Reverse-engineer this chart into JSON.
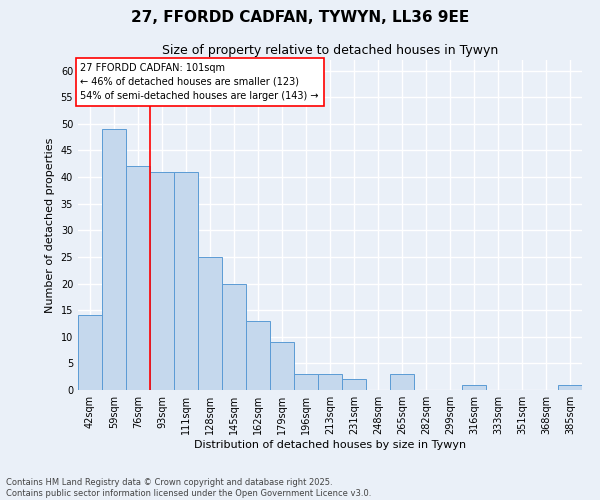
{
  "title1": "27, FFORDD CADFAN, TYWYN, LL36 9EE",
  "title2": "Size of property relative to detached houses in Tywyn",
  "xlabel": "Distribution of detached houses by size in Tywyn",
  "ylabel": "Number of detached properties",
  "categories": [
    "42sqm",
    "59sqm",
    "76sqm",
    "93sqm",
    "111sqm",
    "128sqm",
    "145sqm",
    "162sqm",
    "179sqm",
    "196sqm",
    "213sqm",
    "231sqm",
    "248sqm",
    "265sqm",
    "282sqm",
    "299sqm",
    "316sqm",
    "333sqm",
    "351sqm",
    "368sqm",
    "385sqm"
  ],
  "values": [
    14,
    49,
    42,
    41,
    41,
    25,
    20,
    13,
    9,
    3,
    3,
    2,
    0,
    3,
    0,
    0,
    1,
    0,
    0,
    0,
    1
  ],
  "bar_color": "#c5d8ed",
  "bar_edge_color": "#5b9bd5",
  "annotation_text": "27 FFORDD CADFAN: 101sqm\n← 46% of detached houses are smaller (123)\n54% of semi-detached houses are larger (143) →",
  "annotation_box_color": "white",
  "annotation_box_edge_color": "red",
  "red_line_x": 2.5,
  "ylim": [
    0,
    62
  ],
  "yticks": [
    0,
    5,
    10,
    15,
    20,
    25,
    30,
    35,
    40,
    45,
    50,
    55,
    60
  ],
  "footer": "Contains HM Land Registry data © Crown copyright and database right 2025.\nContains public sector information licensed under the Open Government Licence v3.0.",
  "bg_color": "#eaf0f8",
  "grid_color": "#ffffff",
  "title1_fontsize": 11,
  "title2_fontsize": 9,
  "xlabel_fontsize": 8,
  "ylabel_fontsize": 8,
  "tick_fontsize": 7,
  "annotation_fontsize": 7,
  "footer_fontsize": 6
}
